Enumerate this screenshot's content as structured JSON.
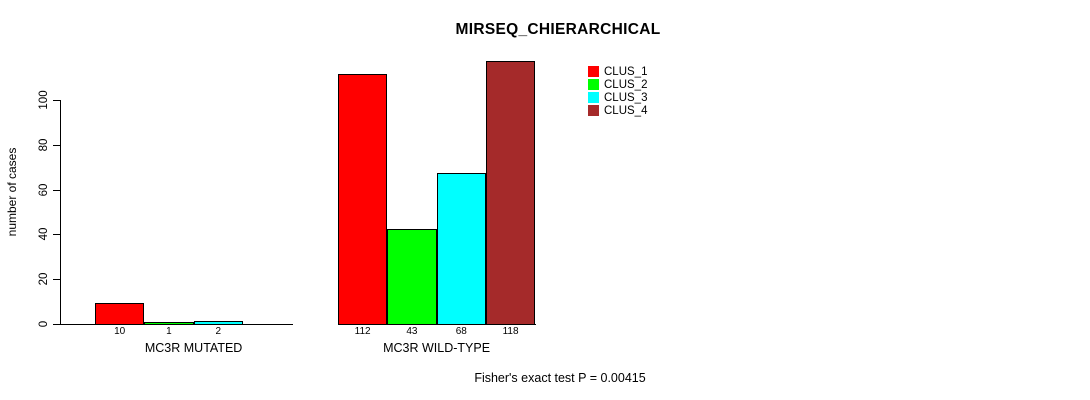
{
  "chart_data": {
    "type": "bar",
    "title": "MIRSEQ_CHIERARCHICAL",
    "ylabel": "number of cases",
    "xlabel": "",
    "yticks": [
      0,
      20,
      40,
      60,
      80,
      100
    ],
    "ylim": [
      0,
      120
    ],
    "grid": false,
    "legend_position": "top-right",
    "categories": [
      "MC3R MUTATED",
      "MC3R WILD-TYPE"
    ],
    "series": [
      {
        "name": "CLUS_1",
        "color": "#FF0000",
        "values": [
          10,
          112
        ]
      },
      {
        "name": "CLUS_2",
        "color": "#00FF00",
        "values": [
          1,
          43
        ]
      },
      {
        "name": "CLUS_3",
        "color": "#00FFFF",
        "values": [
          2,
          68
        ]
      },
      {
        "name": "CLUS_4",
        "color": "#A52A2A",
        "values": [
          0,
          118
        ]
      }
    ],
    "bar_value_labels": [
      [
        "10",
        "1",
        "2",
        ""
      ],
      [
        "112",
        "43",
        "68",
        "118"
      ]
    ],
    "footnote": "Fisher's exact test P = 0.00415"
  }
}
